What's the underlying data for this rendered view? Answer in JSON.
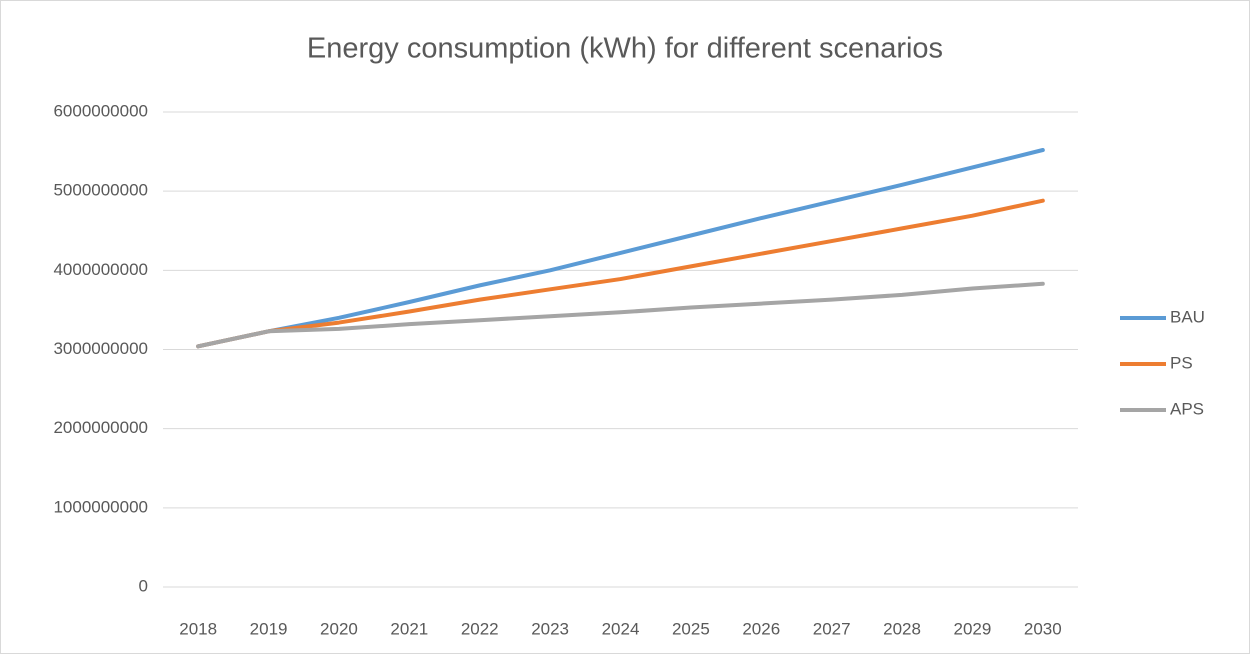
{
  "chart_data": {
    "type": "line",
    "title": "Energy consumption (kWh) for different scenarios",
    "categories": [
      "2018",
      "2019",
      "2020",
      "2021",
      "2022",
      "2023",
      "2024",
      "2025",
      "2026",
      "2027",
      "2028",
      "2029",
      "2030"
    ],
    "series": [
      {
        "name": "BAU",
        "color": "#5b9bd5",
        "values": [
          3040000000,
          3230000000,
          3400000000,
          3600000000,
          3810000000,
          4000000000,
          4220000000,
          4440000000,
          4660000000,
          4870000000,
          5080000000,
          5300000000,
          5520000000
        ]
      },
      {
        "name": "PS",
        "color": "#ed7d31",
        "values": [
          3040000000,
          3230000000,
          3340000000,
          3480000000,
          3630000000,
          3760000000,
          3890000000,
          4050000000,
          4210000000,
          4370000000,
          4530000000,
          4690000000,
          4880000000
        ]
      },
      {
        "name": "APS",
        "color": "#a5a5a5",
        "values": [
          3040000000,
          3230000000,
          3260000000,
          3320000000,
          3370000000,
          3420000000,
          3470000000,
          3530000000,
          3580000000,
          3630000000,
          3690000000,
          3770000000,
          3830000000
        ]
      }
    ],
    "ylim": [
      0,
      6000000000
    ],
    "yticks": [
      0,
      1000000000,
      2000000000,
      3000000000,
      4000000000,
      5000000000,
      6000000000
    ],
    "grid": true,
    "legend": "right"
  }
}
